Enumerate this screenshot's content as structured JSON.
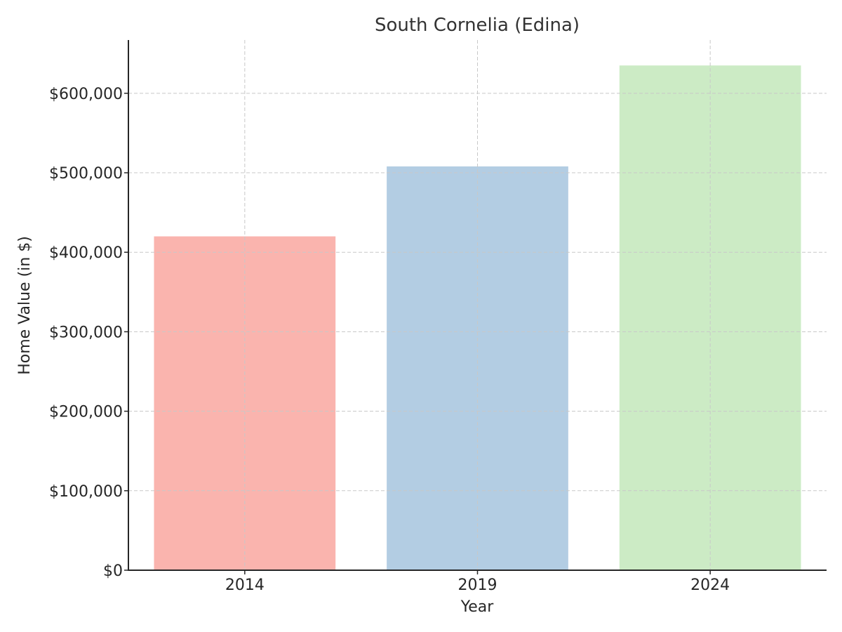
{
  "chart_data": {
    "type": "bar",
    "title": "South Cornelia (Edina)",
    "xlabel": "Year",
    "ylabel": "Home Value (in $)",
    "categories": [
      "2014",
      "2019",
      "2024"
    ],
    "values": [
      420000,
      508000,
      635000
    ],
    "colors": [
      "#fab4ae",
      "#b3cde3",
      "#ccebc5"
    ],
    "ylim": [
      0,
      667000
    ],
    "yticks": [
      0,
      100000,
      200000,
      300000,
      400000,
      500000,
      600000
    ],
    "ytick_labels": [
      "$0",
      "$100,000",
      "$200,000",
      "$300,000",
      "$400,000",
      "$500,000",
      "$600,000"
    ],
    "grid": true,
    "legend": "none"
  }
}
